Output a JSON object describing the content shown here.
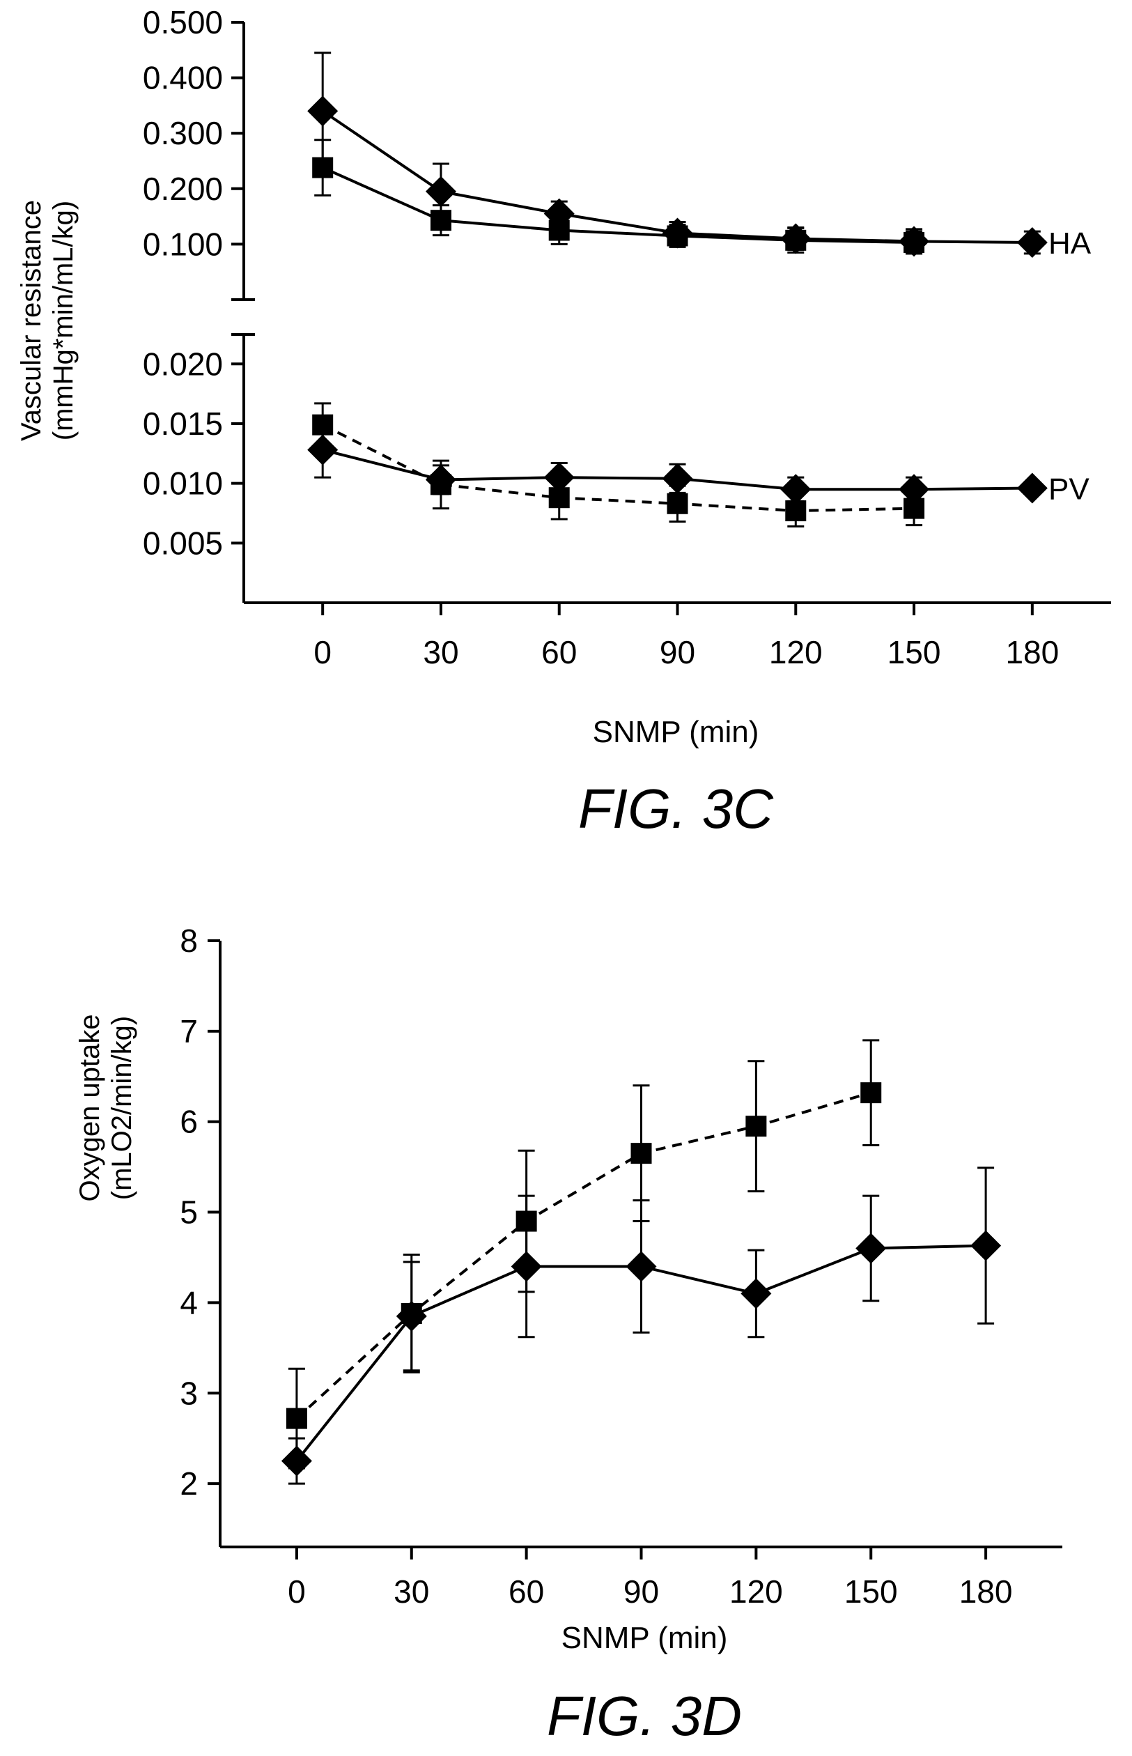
{
  "chart_data": [
    {
      "type": "line",
      "caption": "FIG. 3C",
      "xlabel": "SNMP (min)",
      "ylabel": [
        "Vascular resistance",
        "(mmHg*min/mL/kg)"
      ],
      "xticks": [
        "0",
        "30",
        "60",
        "90",
        "120",
        "150",
        "180"
      ],
      "xlim": [
        -20,
        200
      ],
      "broken_y_axis": true,
      "upper_panel": {
        "ylim": [
          0.0,
          0.5
        ],
        "yticks": [
          "0.100",
          "0.200",
          "0.300",
          "0.400",
          "0.500"
        ],
        "label": "HA",
        "series": [
          {
            "marker": "diamond",
            "line": "solid",
            "x": [
              0,
              30,
              60,
              90,
              120,
              150,
              180
            ],
            "y": [
              0.34,
              0.195,
              0.155,
              0.12,
              0.11,
              0.105,
              0.103
            ],
            "err": [
              0.105,
              0.05,
              0.022,
              0.02,
              0.02,
              0.022,
              0.02
            ]
          },
          {
            "marker": "square",
            "line": "solid",
            "x": [
              0,
              30,
              60,
              90,
              120,
              150
            ],
            "y": [
              0.238,
              0.143,
              0.125,
              0.115,
              0.107,
              0.103
            ],
            "err": [
              0.05,
              0.027,
              0.025,
              0.02,
              0.022,
              0.02
            ]
          }
        ]
      },
      "lower_panel": {
        "ylim": [
          0.0,
          0.022
        ],
        "yticks": [
          "0.005",
          "0.010",
          "0.015",
          "0.020"
        ],
        "label": "PV",
        "series": [
          {
            "marker": "diamond",
            "line": "solid",
            "x": [
              0,
              30,
              60,
              90,
              120,
              150,
              180
            ],
            "y": [
              0.0128,
              0.0103,
              0.0105,
              0.0104,
              0.0095,
              0.0095,
              0.0096
            ],
            "err": [
              0.0023,
              0.0012,
              0.0012,
              0.0012,
              0.001,
              0.001,
              0.0
            ]
          },
          {
            "marker": "square",
            "line": "dashed",
            "x": [
              0,
              30,
              60,
              90,
              120,
              150
            ],
            "y": [
              0.0149,
              0.0099,
              0.0088,
              0.0083,
              0.0077,
              0.0079
            ],
            "err": [
              0.0018,
              0.002,
              0.0018,
              0.0015,
              0.0013,
              0.0014
            ]
          }
        ]
      }
    },
    {
      "type": "line",
      "caption": "FIG. 3D",
      "xlabel": "SNMP (min)",
      "ylabel": [
        "Oxygen uptake",
        "(mLO2/min/kg)"
      ],
      "xticks": [
        "0",
        "30",
        "60",
        "90",
        "120",
        "150",
        "180"
      ],
      "yticks": [
        "2",
        "3",
        "4",
        "5",
        "6",
        "7",
        "8"
      ],
      "ylim": [
        1.3,
        8
      ],
      "xlim": [
        -20,
        200
      ],
      "series": [
        {
          "marker": "diamond",
          "line": "solid",
          "x": [
            0,
            30,
            60,
            90,
            120,
            150,
            180
          ],
          "y": [
            2.25,
            3.85,
            4.4,
            4.4,
            4.1,
            4.6,
            4.63
          ],
          "err": [
            0.25,
            0.6,
            0.78,
            0.73,
            0.48,
            0.58,
            0.86
          ]
        },
        {
          "marker": "square",
          "line": "dashed",
          "x": [
            0,
            30,
            60,
            90,
            120,
            150
          ],
          "y": [
            2.72,
            3.88,
            4.9,
            5.65,
            5.95,
            6.32
          ],
          "err": [
            0.55,
            0.65,
            0.78,
            0.75,
            0.72,
            0.58
          ]
        }
      ]
    }
  ]
}
